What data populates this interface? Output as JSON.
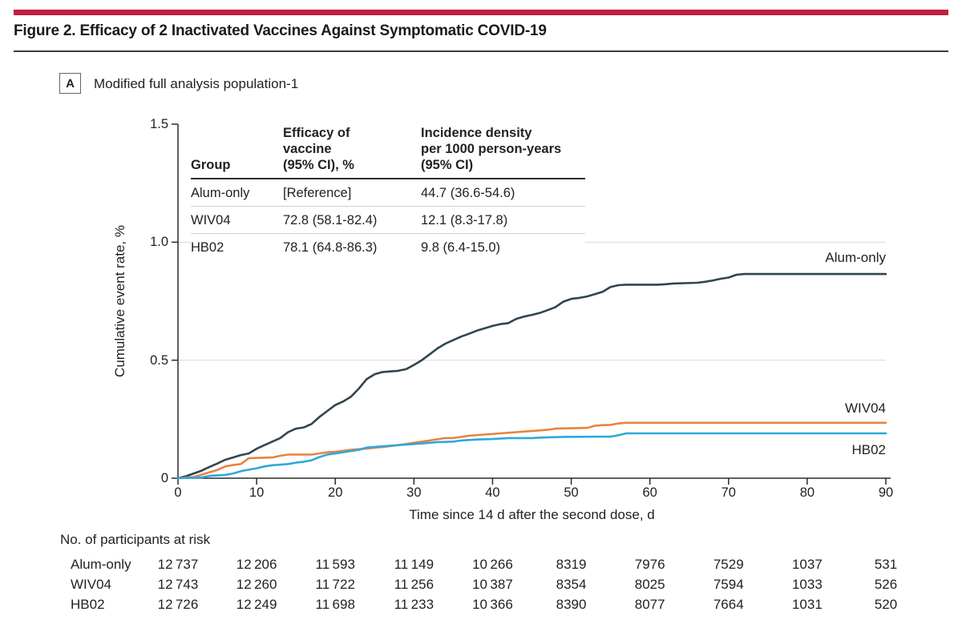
{
  "figure": {
    "title": "Figure 2. Efficacy of 2 Inactivated Vaccines Against Symptomatic COVID-19",
    "accent_color": "#C41E3D"
  },
  "panel": {
    "label": "A",
    "caption": "Modified full analysis population-1"
  },
  "inset_table": {
    "headers": [
      "Group",
      "Efficacy of\nvaccine\n(95% CI), %",
      "Incidence density\nper 1000 person-years\n(95% CI)"
    ],
    "rows": [
      [
        "Alum-only",
        "[Reference]",
        "44.7 (36.6-54.6)"
      ],
      [
        "WIV04",
        "72.8 (58.1-82.4)",
        "12.1 (8.3-17.8)"
      ],
      [
        "HB02",
        "78.1 (64.8-86.3)",
        "9.8 (6.4-15.0)"
      ]
    ]
  },
  "chart_data": {
    "type": "line",
    "title": "",
    "xlabel": "Time since 14 d after the second dose, d",
    "ylabel": "Cumulative event rate, %",
    "xlim": [
      0,
      90
    ],
    "ylim": [
      0,
      1.5
    ],
    "x_ticks": [
      0,
      10,
      20,
      30,
      40,
      50,
      60,
      70,
      80,
      90
    ],
    "x_tick_labels": [
      "0",
      "10",
      "20",
      "30",
      "40",
      "50",
      "60",
      "70",
      "80",
      "90"
    ],
    "y_ticks": [
      0,
      0.5,
      1.0,
      1.5
    ],
    "y_tick_labels": [
      "0",
      "0.5",
      "1.0",
      "1.5"
    ],
    "gridlines": [
      0.5,
      1.0
    ],
    "grid_color": "#d9d9d9",
    "axis_color": "#2b2b2b",
    "legend_position": "right-of-line-ends",
    "series": [
      {
        "name": "Alum-only",
        "color": "#31454E",
        "points": [
          [
            0,
            0
          ],
          [
            1,
            0.008
          ],
          [
            2,
            0.02
          ],
          [
            3,
            0.032
          ],
          [
            4,
            0.048
          ],
          [
            5,
            0.062
          ],
          [
            6,
            0.078
          ],
          [
            7,
            0.088
          ],
          [
            8,
            0.098
          ],
          [
            9,
            0.105
          ],
          [
            10,
            0.125
          ],
          [
            11,
            0.14
          ],
          [
            12,
            0.155
          ],
          [
            13,
            0.17
          ],
          [
            14,
            0.195
          ],
          [
            15,
            0.21
          ],
          [
            16,
            0.215
          ],
          [
            17,
            0.23
          ],
          [
            18,
            0.26
          ],
          [
            19,
            0.285
          ],
          [
            20,
            0.31
          ],
          [
            21,
            0.325
          ],
          [
            22,
            0.345
          ],
          [
            23,
            0.38
          ],
          [
            24,
            0.42
          ],
          [
            25,
            0.44
          ],
          [
            26,
            0.45
          ],
          [
            28,
            0.455
          ],
          [
            29,
            0.462
          ],
          [
            30,
            0.48
          ],
          [
            31,
            0.5
          ],
          [
            32,
            0.525
          ],
          [
            33,
            0.55
          ],
          [
            34,
            0.57
          ],
          [
            35,
            0.585
          ],
          [
            36,
            0.6
          ],
          [
            37,
            0.612
          ],
          [
            38,
            0.625
          ],
          [
            39,
            0.635
          ],
          [
            40,
            0.645
          ],
          [
            41,
            0.653
          ],
          [
            42,
            0.657
          ],
          [
            43,
            0.675
          ],
          [
            44,
            0.685
          ],
          [
            45,
            0.692
          ],
          [
            46,
            0.7
          ],
          [
            47,
            0.712
          ],
          [
            48,
            0.725
          ],
          [
            49,
            0.748
          ],
          [
            50,
            0.76
          ],
          [
            51,
            0.764
          ],
          [
            52,
            0.77
          ],
          [
            53,
            0.78
          ],
          [
            54,
            0.79
          ],
          [
            55,
            0.81
          ],
          [
            56,
            0.818
          ],
          [
            57,
            0.82
          ],
          [
            61,
            0.82
          ],
          [
            62,
            0.822
          ],
          [
            63,
            0.825
          ],
          [
            66,
            0.828
          ],
          [
            67,
            0.832
          ],
          [
            68,
            0.838
          ],
          [
            69,
            0.845
          ],
          [
            70,
            0.85
          ],
          [
            71,
            0.862
          ],
          [
            72,
            0.865
          ],
          [
            90,
            0.865
          ]
        ]
      },
      {
        "name": "WIV04",
        "color": "#E8833C",
        "points": [
          [
            0,
            0
          ],
          [
            2,
            0.005
          ],
          [
            3,
            0.015
          ],
          [
            4,
            0.025
          ],
          [
            5,
            0.035
          ],
          [
            6,
            0.05
          ],
          [
            7,
            0.056
          ],
          [
            8,
            0.06
          ],
          [
            9,
            0.085
          ],
          [
            12,
            0.088
          ],
          [
            13,
            0.095
          ],
          [
            14,
            0.1
          ],
          [
            17,
            0.1
          ],
          [
            19,
            0.11
          ],
          [
            20,
            0.112
          ],
          [
            22,
            0.12
          ],
          [
            24,
            0.126
          ],
          [
            26,
            0.132
          ],
          [
            28,
            0.14
          ],
          [
            30,
            0.15
          ],
          [
            32,
            0.16
          ],
          [
            34,
            0.17
          ],
          [
            35,
            0.17
          ],
          [
            37,
            0.18
          ],
          [
            39,
            0.185
          ],
          [
            41,
            0.19
          ],
          [
            43,
            0.195
          ],
          [
            45,
            0.2
          ],
          [
            47,
            0.205
          ],
          [
            48,
            0.21
          ],
          [
            52,
            0.213
          ],
          [
            53,
            0.222
          ],
          [
            54,
            0.225
          ],
          [
            55,
            0.226
          ],
          [
            56,
            0.232
          ],
          [
            57,
            0.235
          ],
          [
            90,
            0.235
          ]
        ]
      },
      {
        "name": "HB02",
        "color": "#2FA8DC",
        "points": [
          [
            0,
            0
          ],
          [
            3,
            0.003
          ],
          [
            4,
            0.01
          ],
          [
            6,
            0.014
          ],
          [
            7,
            0.02
          ],
          [
            8,
            0.03
          ],
          [
            9,
            0.036
          ],
          [
            10,
            0.042
          ],
          [
            11,
            0.05
          ],
          [
            12,
            0.055
          ],
          [
            14,
            0.06
          ],
          [
            15,
            0.066
          ],
          [
            16,
            0.07
          ],
          [
            17,
            0.076
          ],
          [
            18,
            0.09
          ],
          [
            19,
            0.1
          ],
          [
            20,
            0.105
          ],
          [
            22,
            0.115
          ],
          [
            23,
            0.12
          ],
          [
            24,
            0.13
          ],
          [
            26,
            0.135
          ],
          [
            28,
            0.14
          ],
          [
            30,
            0.145
          ],
          [
            32,
            0.15
          ],
          [
            33,
            0.153
          ],
          [
            35,
            0.155
          ],
          [
            36,
            0.16
          ],
          [
            38,
            0.164
          ],
          [
            40,
            0.166
          ],
          [
            42,
            0.17
          ],
          [
            45,
            0.17
          ],
          [
            46,
            0.172
          ],
          [
            49,
            0.175
          ],
          [
            55,
            0.176
          ],
          [
            56,
            0.182
          ],
          [
            57,
            0.19
          ],
          [
            90,
            0.19
          ]
        ]
      }
    ]
  },
  "risk_table": {
    "heading": "No. of participants at risk",
    "rows": [
      {
        "label": "Alum-only",
        "values": [
          "12 737",
          "12 206",
          "11 593",
          "11 149",
          "10 266",
          "8319",
          "7976",
          "7529",
          "1037",
          "531"
        ]
      },
      {
        "label": "WIV04",
        "values": [
          "12 743",
          "12 260",
          "11 722",
          "11 256",
          "10 387",
          "8354",
          "8025",
          "7594",
          "1033",
          "526"
        ]
      },
      {
        "label": "HB02",
        "values": [
          "12 726",
          "12 249",
          "11 698",
          "11 233",
          "10 366",
          "8390",
          "8077",
          "7664",
          "1031",
          "520"
        ]
      }
    ]
  }
}
